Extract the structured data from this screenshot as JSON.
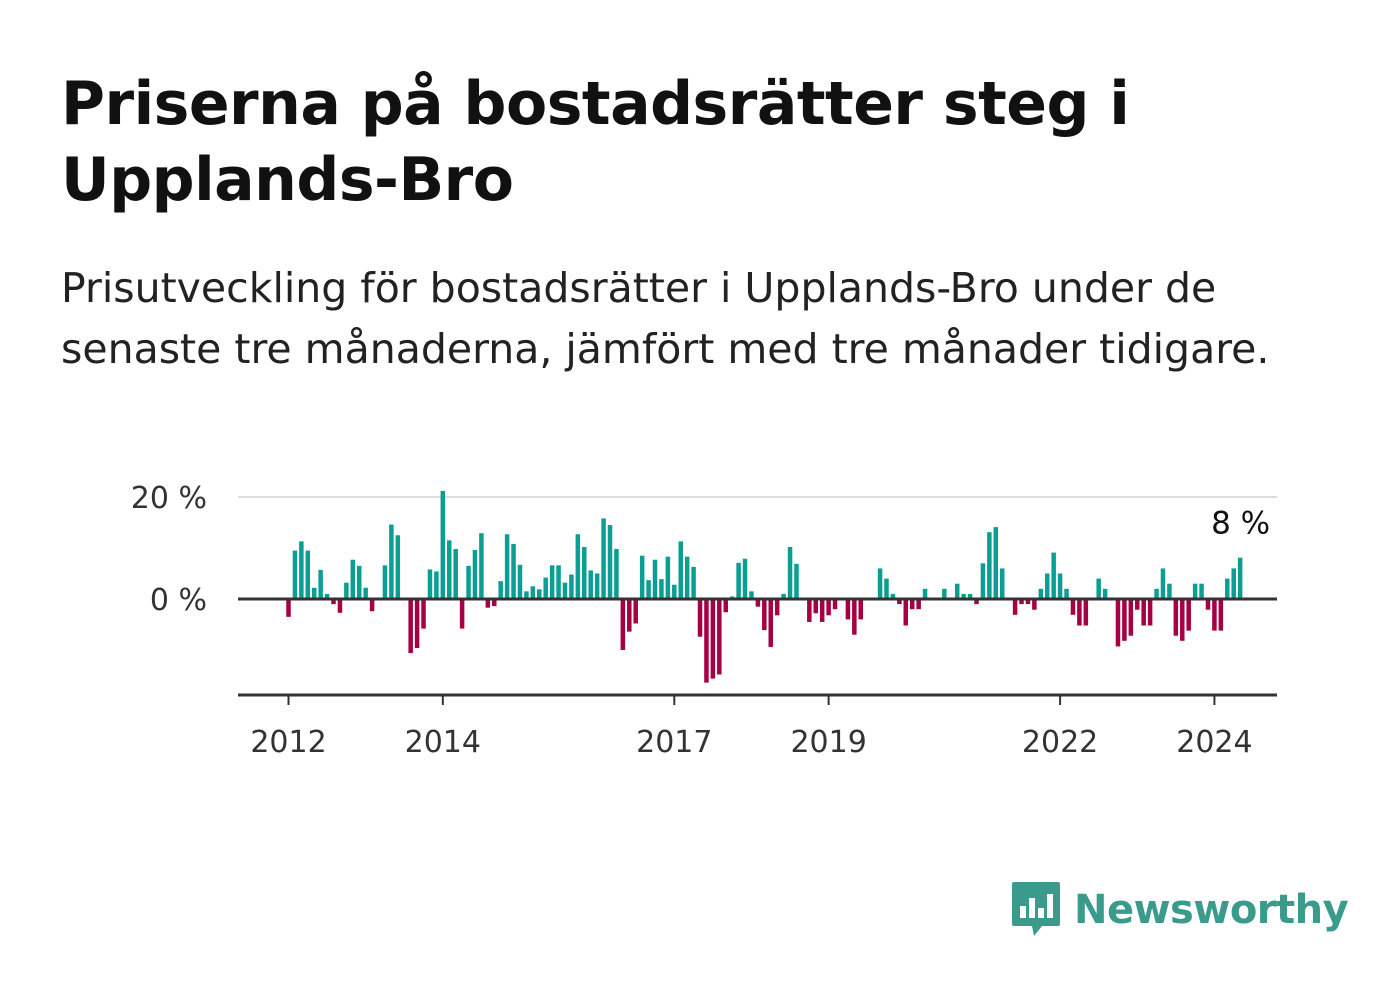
{
  "title": "Priserna på bostadsrätter steg i Upplands-Bro",
  "subtitle": "Prisutveckling för bostadsrätter i Upplands-Bro under de senaste tre månaderna, jämfört med tre månader tidigare.",
  "brand": {
    "name": "Newsworthy",
    "color": "#3a9a8c",
    "icon": "bar-chart-speech-bubble-icon"
  },
  "colors": {
    "positive": "#0b9e92",
    "negative": "#a50044",
    "axis": "#333333",
    "grid": "#dddddd"
  },
  "chart_data": {
    "type": "bar",
    "title": "Priserna på bostadsrätter steg i Upplands-Bro",
    "xlabel": "",
    "ylabel": "",
    "ylim": [
      -20,
      21
    ],
    "y_ticks": [
      0,
      20
    ],
    "y_tick_labels": [
      "0 %",
      "20 %"
    ],
    "x_tick_labels": [
      "2012",
      "2014",
      "2017",
      "2019",
      "2022",
      "2024"
    ],
    "grid": true,
    "last_value_label": "8 %",
    "series": [
      {
        "values": [
          {
            "date": "2012-01",
            "value": -3.5
          },
          {
            "date": "2012-02",
            "value": 9.5
          },
          {
            "date": "2012-03",
            "value": 11.3
          },
          {
            "date": "2012-04",
            "value": 9.5
          },
          {
            "date": "2012-05",
            "value": 2.2
          },
          {
            "date": "2012-06",
            "value": 5.7
          },
          {
            "date": "2012-07",
            "value": 1.0
          },
          {
            "date": "2012-08",
            "value": -1.0
          },
          {
            "date": "2012-09",
            "value": -2.7
          },
          {
            "date": "2012-10",
            "value": 3.2
          },
          {
            "date": "2012-11",
            "value": 7.7
          },
          {
            "date": "2012-12",
            "value": 6.5
          },
          {
            "date": "2013-01",
            "value": 2.2
          },
          {
            "date": "2013-02",
            "value": -2.4
          },
          {
            "date": "2013-03",
            "value": 0.2
          },
          {
            "date": "2013-04",
            "value": 6.6
          },
          {
            "date": "2013-05",
            "value": 14.6
          },
          {
            "date": "2013-06",
            "value": 12.5
          },
          {
            "date": "2013-07",
            "value": 0.2
          },
          {
            "date": "2013-08",
            "value": -10.6
          },
          {
            "date": "2013-09",
            "value": -9.6
          },
          {
            "date": "2013-10",
            "value": -5.8
          },
          {
            "date": "2013-11",
            "value": 5.8
          },
          {
            "date": "2013-12",
            "value": 5.4
          },
          {
            "date": "2014-01",
            "value": 21.2
          },
          {
            "date": "2014-02",
            "value": 11.5
          },
          {
            "date": "2014-03",
            "value": 9.8
          },
          {
            "date": "2014-04",
            "value": -5.8
          },
          {
            "date": "2014-05",
            "value": 6.5
          },
          {
            "date": "2014-06",
            "value": 9.6
          },
          {
            "date": "2014-07",
            "value": 12.9
          },
          {
            "date": "2014-08",
            "value": -1.7
          },
          {
            "date": "2014-09",
            "value": -1.4
          },
          {
            "date": "2014-10",
            "value": 3.5
          },
          {
            "date": "2014-11",
            "value": 12.7
          },
          {
            "date": "2014-12",
            "value": 10.8
          },
          {
            "date": "2015-01",
            "value": 6.7
          },
          {
            "date": "2015-02",
            "value": 1.5
          },
          {
            "date": "2015-03",
            "value": 2.5
          },
          {
            "date": "2015-04",
            "value": 1.9
          },
          {
            "date": "2015-05",
            "value": 4.2
          },
          {
            "date": "2015-06",
            "value": 6.6
          },
          {
            "date": "2015-07",
            "value": 6.6
          },
          {
            "date": "2015-08",
            "value": 3.2
          },
          {
            "date": "2015-09",
            "value": 4.8
          },
          {
            "date": "2015-10",
            "value": 12.7
          },
          {
            "date": "2015-11",
            "value": 10.2
          },
          {
            "date": "2015-12",
            "value": 5.6
          },
          {
            "date": "2016-01",
            "value": 5.0
          },
          {
            "date": "2016-02",
            "value": 15.8
          },
          {
            "date": "2016-03",
            "value": 14.5
          },
          {
            "date": "2016-04",
            "value": 9.8
          },
          {
            "date": "2016-05",
            "value": -10.0
          },
          {
            "date": "2016-06",
            "value": -6.4
          },
          {
            "date": "2016-07",
            "value": -4.8
          },
          {
            "date": "2016-08",
            "value": 8.5
          },
          {
            "date": "2016-09",
            "value": 3.7
          },
          {
            "date": "2016-10",
            "value": 7.7
          },
          {
            "date": "2016-11",
            "value": 3.9
          },
          {
            "date": "2016-12",
            "value": 8.3
          },
          {
            "date": "2017-01",
            "value": 2.8
          },
          {
            "date": "2017-02",
            "value": 11.3
          },
          {
            "date": "2017-03",
            "value": 8.3
          },
          {
            "date": "2017-04",
            "value": 6.3
          },
          {
            "date": "2017-05",
            "value": -7.4
          },
          {
            "date": "2017-06",
            "value": -16.4
          },
          {
            "date": "2017-07",
            "value": -15.6
          },
          {
            "date": "2017-08",
            "value": -14.8
          },
          {
            "date": "2017-09",
            "value": -2.6
          },
          {
            "date": "2017-10",
            "value": 0.5
          },
          {
            "date": "2017-11",
            "value": 7.1
          },
          {
            "date": "2017-12",
            "value": 7.9
          },
          {
            "date": "2018-01",
            "value": 1.5
          },
          {
            "date": "2018-02",
            "value": -1.5
          },
          {
            "date": "2018-03",
            "value": -6.1
          },
          {
            "date": "2018-04",
            "value": -9.4
          },
          {
            "date": "2018-05",
            "value": -3.2
          },
          {
            "date": "2018-06",
            "value": 1.0
          },
          {
            "date": "2018-07",
            "value": 10.2
          },
          {
            "date": "2018-08",
            "value": 6.9
          },
          {
            "date": "2018-09",
            "value": 0.2
          },
          {
            "date": "2018-10",
            "value": -4.5
          },
          {
            "date": "2018-11",
            "value": -2.8
          },
          {
            "date": "2018-12",
            "value": -4.5
          },
          {
            "date": "2019-01",
            "value": -3.2
          },
          {
            "date": "2019-02",
            "value": -2.0
          },
          {
            "date": "2019-03",
            "value": 0.2
          },
          {
            "date": "2019-04",
            "value": -4.0
          },
          {
            "date": "2019-05",
            "value": -7.0
          },
          {
            "date": "2019-06",
            "value": -4.0
          },
          {
            "date": "2019-07",
            "value": 0.2
          },
          {
            "date": "2019-08",
            "value": 0.2
          },
          {
            "date": "2019-09",
            "value": 6.0
          },
          {
            "date": "2019-10",
            "value": 4.0
          },
          {
            "date": "2019-11",
            "value": 1.0
          },
          {
            "date": "2019-12",
            "value": -1.0
          },
          {
            "date": "2020-01",
            "value": -5.2
          },
          {
            "date": "2020-02",
            "value": -2.0
          },
          {
            "date": "2020-03",
            "value": -2.0
          },
          {
            "date": "2020-04",
            "value": 2.0
          },
          {
            "date": "2020-05",
            "value": 0.2
          },
          {
            "date": "2020-06",
            "value": 0.2
          },
          {
            "date": "2020-07",
            "value": 2.0
          },
          {
            "date": "2020-08",
            "value": 0.2
          },
          {
            "date": "2020-09",
            "value": 3.0
          },
          {
            "date": "2020-10",
            "value": 1.0
          },
          {
            "date": "2020-11",
            "value": 1.0
          },
          {
            "date": "2020-12",
            "value": -1.0
          },
          {
            "date": "2021-01",
            "value": 7.0
          },
          {
            "date": "2021-02",
            "value": 13.1
          },
          {
            "date": "2021-03",
            "value": 14.1
          },
          {
            "date": "2021-04",
            "value": 6.0
          },
          {
            "date": "2021-05",
            "value": 0.2
          },
          {
            "date": "2021-06",
            "value": -3.1
          },
          {
            "date": "2021-07",
            "value": -1.0
          },
          {
            "date": "2021-08",
            "value": -1.0
          },
          {
            "date": "2021-09",
            "value": -2.1
          },
          {
            "date": "2021-10",
            "value": 2.0
          },
          {
            "date": "2021-11",
            "value": 5.0
          },
          {
            "date": "2021-12",
            "value": 9.1
          },
          {
            "date": "2022-01",
            "value": 5.0
          },
          {
            "date": "2022-02",
            "value": 2.0
          },
          {
            "date": "2022-03",
            "value": -3.1
          },
          {
            "date": "2022-04",
            "value": -5.2
          },
          {
            "date": "2022-05",
            "value": -5.2
          },
          {
            "date": "2022-06",
            "value": 0.2
          },
          {
            "date": "2022-07",
            "value": 4.0
          },
          {
            "date": "2022-08",
            "value": 2.0
          },
          {
            "date": "2022-09",
            "value": 0.2
          },
          {
            "date": "2022-10",
            "value": -9.3
          },
          {
            "date": "2022-11",
            "value": -8.2
          },
          {
            "date": "2022-12",
            "value": -7.2
          },
          {
            "date": "2023-01",
            "value": -2.1
          },
          {
            "date": "2023-02",
            "value": -5.2
          },
          {
            "date": "2023-03",
            "value": -5.2
          },
          {
            "date": "2023-04",
            "value": 2.0
          },
          {
            "date": "2023-05",
            "value": 6.0
          },
          {
            "date": "2023-06",
            "value": 3.0
          },
          {
            "date": "2023-07",
            "value": -7.2
          },
          {
            "date": "2023-08",
            "value": -8.2
          },
          {
            "date": "2023-09",
            "value": -6.2
          },
          {
            "date": "2023-10",
            "value": 3.0
          },
          {
            "date": "2023-11",
            "value": 3.0
          },
          {
            "date": "2023-12",
            "value": -2.1
          },
          {
            "date": "2024-01",
            "value": -6.2
          },
          {
            "date": "2024-02",
            "value": -6.2
          },
          {
            "date": "2024-03",
            "value": 4.0
          },
          {
            "date": "2024-04",
            "value": 6.0
          },
          {
            "date": "2024-05",
            "value": 8.1
          }
        ]
      }
    ]
  }
}
